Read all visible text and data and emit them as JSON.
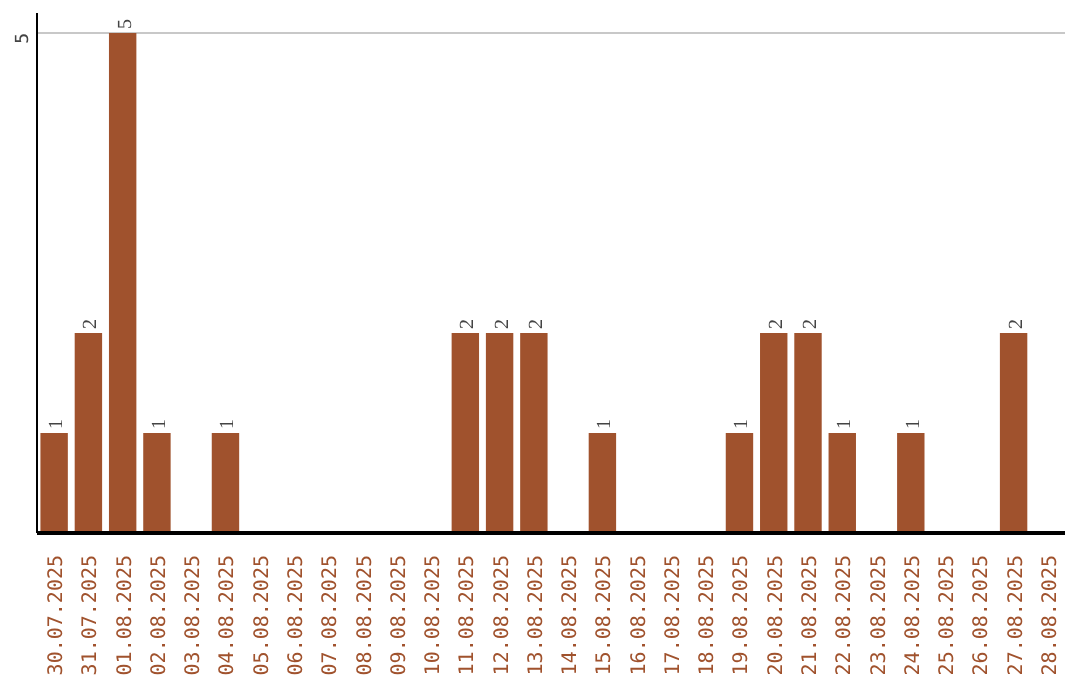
{
  "chart_data": {
    "type": "bar",
    "categories": [
      "30.07.2025",
      "31.07.2025",
      "01.08.2025",
      "02.08.2025",
      "03.08.2025",
      "04.08.2025",
      "05.08.2025",
      "06.08.2025",
      "07.08.2025",
      "08.08.2025",
      "09.08.2025",
      "10.08.2025",
      "11.08.2025",
      "12.08.2025",
      "13.08.2025",
      "14.08.2025",
      "15.08.2025",
      "16.08.2025",
      "17.08.2025",
      "18.08.2025",
      "19.08.2025",
      "20.08.2025",
      "21.08.2025",
      "22.08.2025",
      "23.08.2025",
      "24.08.2025",
      "25.08.2025",
      "26.08.2025",
      "27.08.2025",
      "28.08.2025"
    ],
    "values": [
      1,
      2,
      5,
      1,
      0,
      1,
      0,
      0,
      0,
      0,
      0,
      0,
      2,
      2,
      2,
      0,
      1,
      0,
      0,
      0,
      1,
      2,
      2,
      1,
      0,
      1,
      0,
      0,
      2,
      0
    ],
    "value_labels": [
      "1",
      "2",
      "5",
      "1",
      null,
      "1",
      null,
      null,
      null,
      null,
      null,
      null,
      "2",
      "2",
      "2",
      null,
      "1",
      null,
      null,
      null,
      "1",
      "2",
      "2",
      "1",
      null,
      "1",
      null,
      null,
      "2",
      null
    ],
    "color": "#a0522d",
    "ylim": [
      0,
      5.2
    ],
    "yticks": [
      5
    ],
    "grid": "y"
  }
}
